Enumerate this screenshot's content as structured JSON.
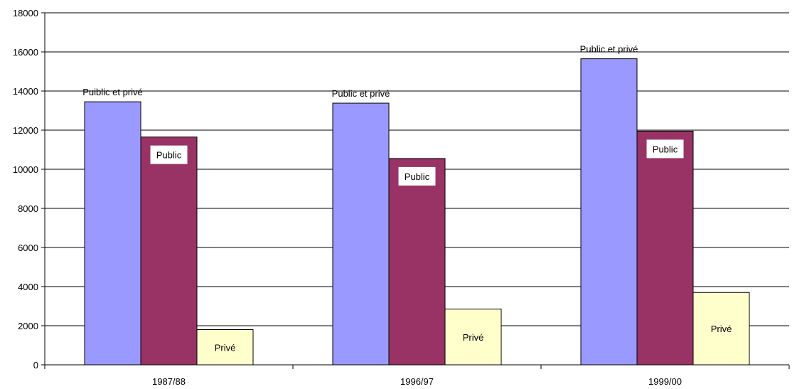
{
  "chart_data": {
    "type": "bar",
    "title": "",
    "xlabel": "",
    "ylabel": "",
    "categories": [
      "1987/88",
      "1996/97",
      "1999/00"
    ],
    "ylim": [
      0,
      18000
    ],
    "yticks": [
      0,
      2000,
      4000,
      6000,
      8000,
      10000,
      12000,
      14000,
      16000,
      18000
    ],
    "grid": true,
    "legend": "none",
    "series": [
      {
        "color": "#9999FF",
        "values": [
          13450,
          13380,
          15650
        ]
      },
      {
        "color": "#993366",
        "values": [
          11650,
          10550,
          11950
        ]
      },
      {
        "color": "#FFFFCC",
        "values": [
          1800,
          2850,
          3700
        ]
      }
    ],
    "bar_labels": [
      [
        "Puiblic et privé",
        "Public",
        "Privé"
      ],
      [
        "Public et privé",
        "Public",
        "Privé"
      ],
      [
        "Public et privé",
        "Public",
        "Privé"
      ]
    ]
  }
}
